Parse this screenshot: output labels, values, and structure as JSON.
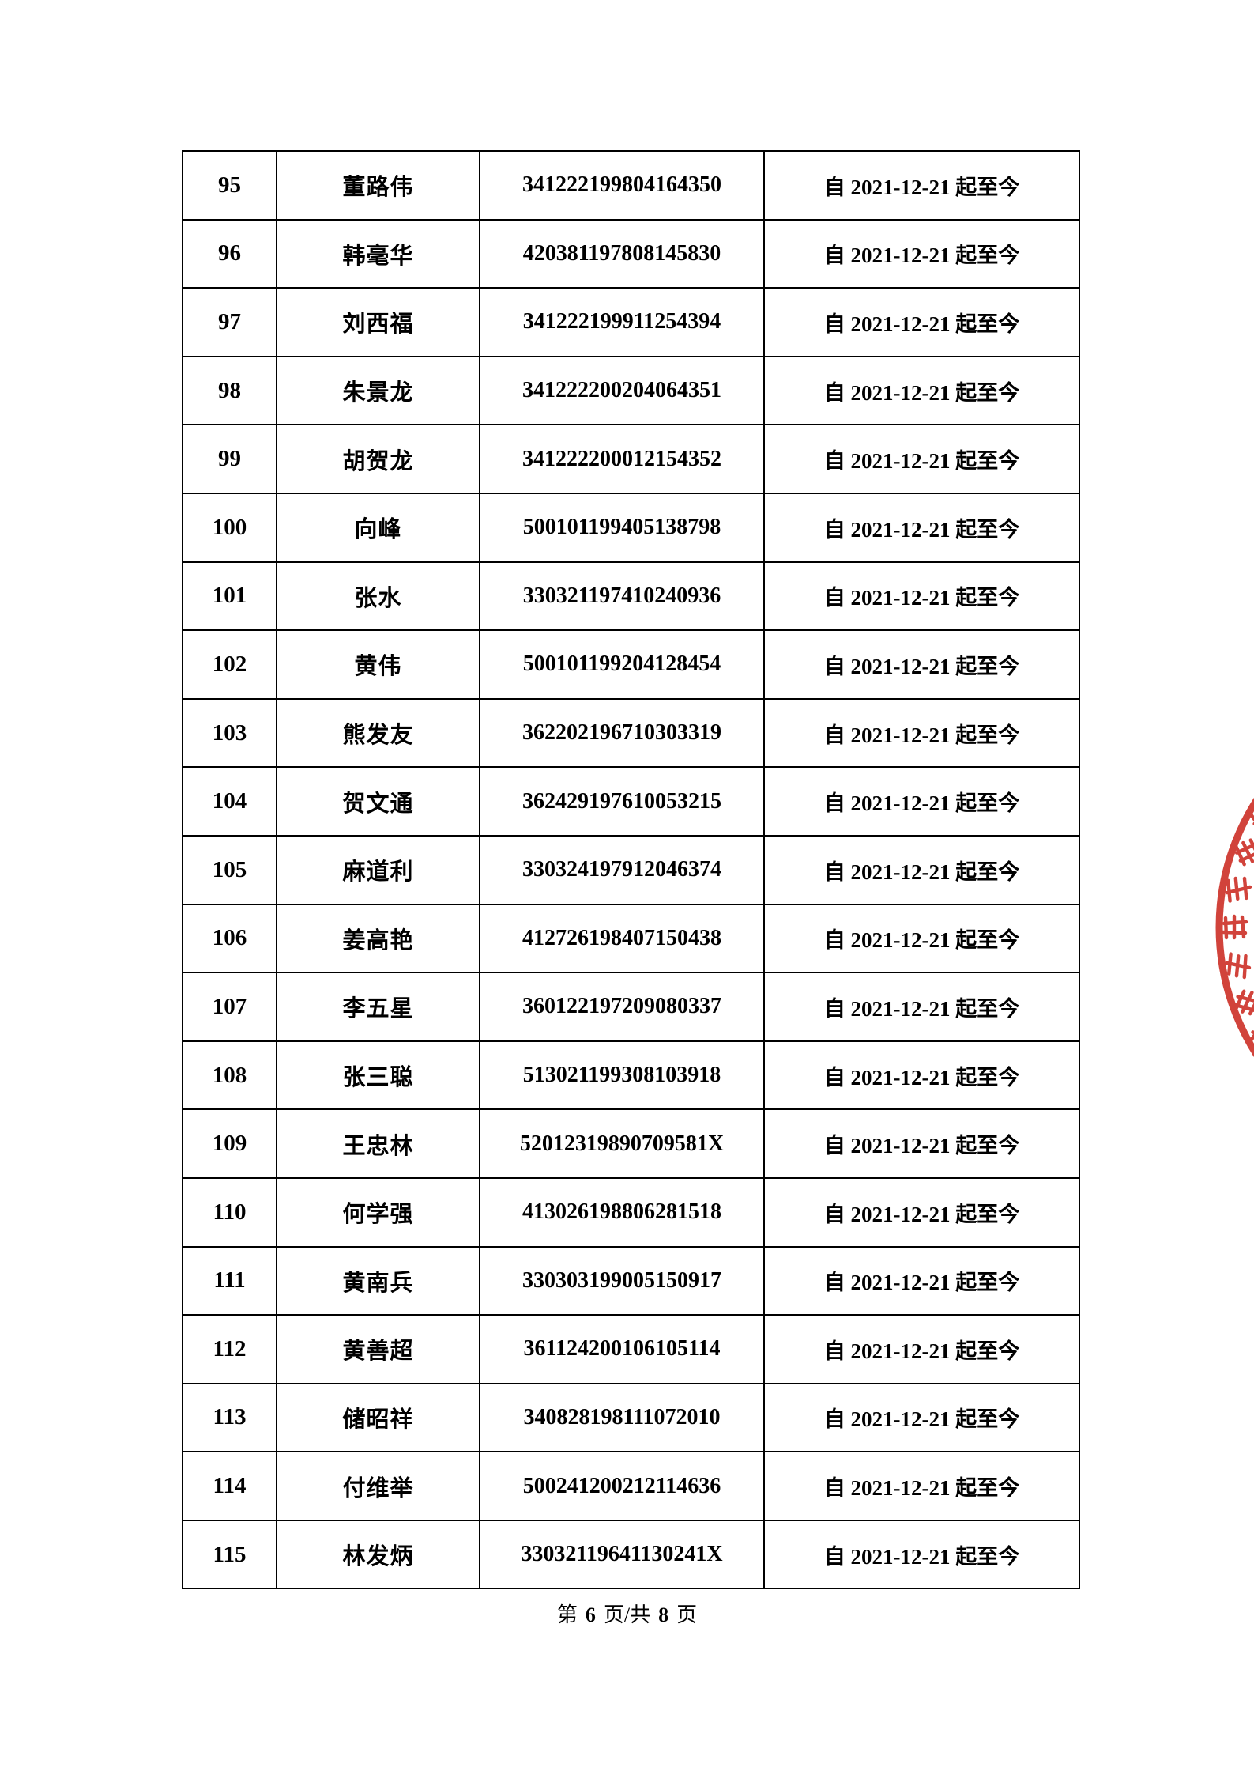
{
  "page": {
    "background": "#ffffff"
  },
  "table": {
    "rows": [
      {
        "no": "95",
        "name": "董路伟",
        "id_number": "341222199804164350",
        "period": "自 2021-12-21 起至今"
      },
      {
        "no": "96",
        "name": "韩毫华",
        "id_number": "420381197808145830",
        "period": "自 2021-12-21 起至今"
      },
      {
        "no": "97",
        "name": "刘西福",
        "id_number": "341222199911254394",
        "period": "自 2021-12-21 起至今"
      },
      {
        "no": "98",
        "name": "朱景龙",
        "id_number": "341222200204064351",
        "period": "自 2021-12-21 起至今"
      },
      {
        "no": "99",
        "name": "胡贺龙",
        "id_number": "341222200012154352",
        "period": "自 2021-12-21 起至今"
      },
      {
        "no": "100",
        "name": "向峰",
        "id_number": "500101199405138798",
        "period": "自 2021-12-21 起至今"
      },
      {
        "no": "101",
        "name": "张水",
        "id_number": "330321197410240936",
        "period": "自 2021-12-21 起至今"
      },
      {
        "no": "102",
        "name": "黄伟",
        "id_number": "500101199204128454",
        "period": "自 2021-12-21 起至今"
      },
      {
        "no": "103",
        "name": "熊发友",
        "id_number": "362202196710303319",
        "period": "自 2021-12-21 起至今"
      },
      {
        "no": "104",
        "name": "贺文通",
        "id_number": "362429197610053215",
        "period": "自 2021-12-21 起至今"
      },
      {
        "no": "105",
        "name": "麻道利",
        "id_number": "330324197912046374",
        "period": "自 2021-12-21 起至今"
      },
      {
        "no": "106",
        "name": "姜高艳",
        "id_number": "412726198407150438",
        "period": "自 2021-12-21 起至今"
      },
      {
        "no": "107",
        "name": "李五星",
        "id_number": "360122197209080337",
        "period": "自 2021-12-21 起至今"
      },
      {
        "no": "108",
        "name": "张三聪",
        "id_number": "513021199308103918",
        "period": "自 2021-12-21 起至今"
      },
      {
        "no": "109",
        "name": "王忠林",
        "id_number": "52012319890709581X",
        "period": "自 2021-12-21 起至今"
      },
      {
        "no": "110",
        "name": "何学强",
        "id_number": "413026198806281518",
        "period": "自 2021-12-21 起至今"
      },
      {
        "no": "111",
        "name": "黄南兵",
        "id_number": "330303199005150917",
        "period": "自 2021-12-21 起至今"
      },
      {
        "no": "112",
        "name": "黄善超",
        "id_number": "361124200106105114",
        "period": "自 2021-12-21 起至今"
      },
      {
        "no": "113",
        "name": "储昭祥",
        "id_number": "340828198111072010",
        "period": "自 2021-12-21 起至今"
      },
      {
        "no": "114",
        "name": "付维举",
        "id_number": "500241200212114636",
        "period": "自 2021-12-21 起至今"
      },
      {
        "no": "115",
        "name": "林发炳",
        "id_number": "33032119641130241X",
        "period": "自 2021-12-21 起至今"
      }
    ]
  },
  "footer": {
    "prefix": "第",
    "current_page": "6",
    "middle": "页/共",
    "total_pages": "8",
    "suffix": "页"
  },
  "seal": {
    "name": "red-official-seal",
    "color": "#cb2a20"
  },
  "colors": {
    "table_border": "#000000",
    "text": "#000000"
  }
}
